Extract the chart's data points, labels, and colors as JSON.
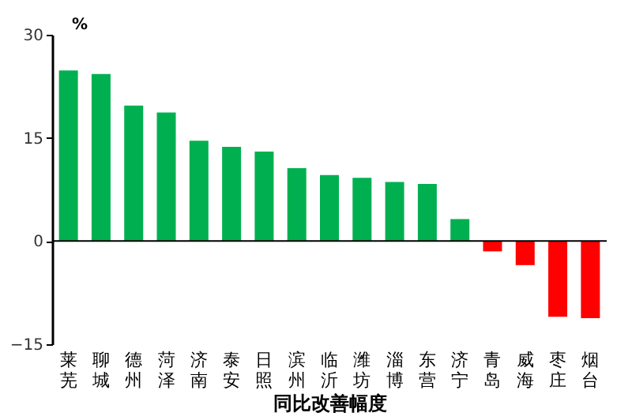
{
  "chart_data": {
    "type": "bar",
    "ylabel": "%",
    "xlabel": "同比改善幅度",
    "categories": [
      "莱芜",
      "聊城",
      "德州",
      "菏泽",
      "济南",
      "泰安",
      "日照",
      "滨州",
      "临沂",
      "潍坊",
      "淄博",
      "东营",
      "济宁",
      "青岛",
      "威海",
      "枣庄",
      "烟台"
    ],
    "values": [
      24.8,
      24.3,
      19.7,
      18.7,
      14.6,
      13.7,
      13.0,
      10.6,
      9.6,
      9.2,
      8.6,
      8.3,
      3.2,
      -1.5,
      -3.5,
      -11.0,
      -11.2
    ],
    "colors": [
      "#00b050",
      "#00b050",
      "#00b050",
      "#00b050",
      "#00b050",
      "#00b050",
      "#00b050",
      "#00b050",
      "#00b050",
      "#00b050",
      "#00b050",
      "#00b050",
      "#00b050",
      "#ff0000",
      "#ff0000",
      "#ff0000",
      "#ff0000"
    ],
    "ylim": [
      -15,
      30
    ],
    "yticks": [
      -15,
      0,
      15,
      30
    ],
    "ref_lines": [
      {
        "axis": "y",
        "value": 0,
        "color": "#000000"
      }
    ],
    "grid": false,
    "legend": false
  }
}
